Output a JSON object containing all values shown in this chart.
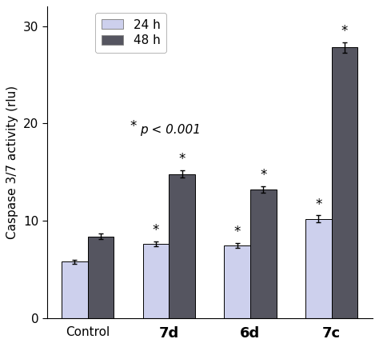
{
  "categories": [
    "Control",
    "7d",
    "6d",
    "7c"
  ],
  "values_24h": [
    5.8,
    7.6,
    7.5,
    10.2
  ],
  "values_48h": [
    8.4,
    14.8,
    13.2,
    27.8
  ],
  "errors_24h": [
    0.22,
    0.25,
    0.25,
    0.35
  ],
  "errors_48h": [
    0.28,
    0.38,
    0.32,
    0.52
  ],
  "color_24h": "#cdd0ed",
  "color_48h": "#555560",
  "ylabel": "Caspase 3/7 activity (rlu)",
  "ylim": [
    0,
    32
  ],
  "yticks": [
    0,
    10,
    20,
    30
  ],
  "bar_width": 0.32,
  "legend_labels": [
    "24 h",
    "48 h"
  ],
  "sig_star": "*",
  "sig_ptext": "p < 0.001",
  "significance_24h": [
    false,
    true,
    true,
    true
  ],
  "significance_48h": [
    false,
    true,
    true,
    true
  ],
  "bold_categories": [
    "7d",
    "6d",
    "7c"
  ],
  "tick_fontsize": 11,
  "label_fontsize": 11,
  "star_fontsize": 12,
  "legend_fontsize": 11
}
